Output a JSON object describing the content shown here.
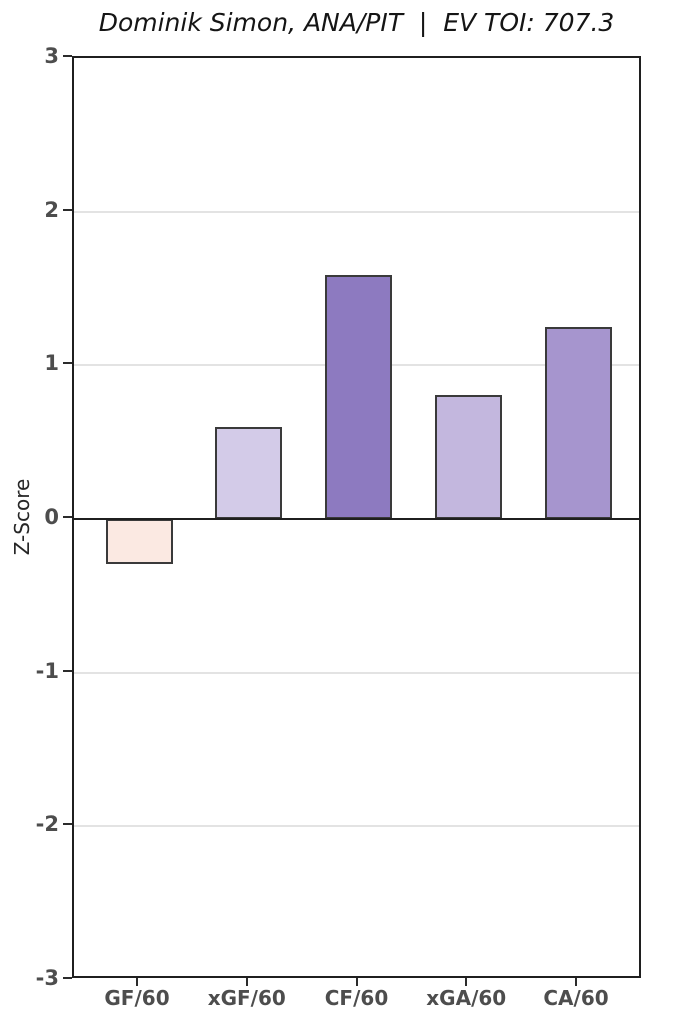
{
  "header": {
    "title": "Dominik Simon, ANA/PIT  |  EV TOI: 707.3"
  },
  "chart_data": {
    "type": "bar",
    "title": "Dominik Simon, ANA/PIT  |  EV TOI: 707.3",
    "subtitle": "",
    "xlabel": "",
    "ylabel": "Z-Score",
    "categories": [
      "GF/60",
      "xGF/60",
      "CF/60",
      "xGA/60",
      "CA/60"
    ],
    "values": [
      -0.29,
      0.6,
      1.59,
      0.81,
      1.25
    ],
    "bar_colors": [
      "#fbe9e2",
      "#d3cbe8",
      "#8d7ac0",
      "#c3b7de",
      "#a695ce"
    ],
    "bar_edge_color": "#3a3a3a",
    "ylim": [
      -3,
      3
    ],
    "yticks": [
      3,
      2,
      1,
      0,
      -1,
      -2,
      -3
    ],
    "grid": "horizontal",
    "gridline_color": "#e3e3e3",
    "zero_line": true,
    "legend_position": "none",
    "axis_color": "#1f1f1f",
    "tick_label_color": "#4d4d4d",
    "title_color": "#151515"
  }
}
